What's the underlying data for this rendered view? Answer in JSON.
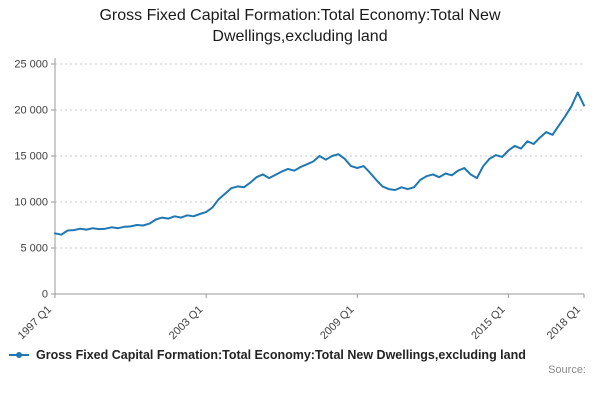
{
  "title": "Gross Fixed Capital Formation:Total Economy:Total New Dwellings,excluding land",
  "legend": {
    "label": "Gross Fixed Capital Formation:Total Economy:Total New Dwellings,excluding land"
  },
  "source_label": "Source:",
  "colors": {
    "line": "#1f77b4",
    "grid": "#c9c9c9",
    "axis": "#9a9a9a",
    "text": "#404040"
  },
  "chart_data": {
    "type": "line",
    "title": "Gross Fixed Capital Formation:Total Economy:Total New Dwellings,excluding land",
    "xlabel": "",
    "ylabel": "",
    "frequency": "quarterly",
    "start": "1997 Q1",
    "end": "2018 Q1",
    "ylim": [
      0,
      25000
    ],
    "y_ticks": [
      0,
      5000,
      10000,
      15000,
      20000,
      25000
    ],
    "y_tick_labels": [
      "0",
      "5 000",
      "10 000",
      "15 000",
      "20 000",
      "25 000"
    ],
    "x_tick_labels": [
      "1997 Q1",
      "2003 Q1",
      "2009 Q1",
      "2015 Q1",
      "2018 Q1"
    ],
    "x_tick_indices": [
      0,
      24,
      48,
      72,
      84
    ],
    "grid": "horizontal-dotted",
    "legend_position": "bottom-left",
    "series": [
      {
        "name": "Gross Fixed Capital Formation:Total Economy:Total New Dwellings,excluding land",
        "values": [
          6600,
          6450,
          6900,
          6950,
          7100,
          7000,
          7150,
          7050,
          7100,
          7250,
          7150,
          7300,
          7350,
          7500,
          7450,
          7650,
          8100,
          8300,
          8200,
          8450,
          8300,
          8550,
          8450,
          8700,
          8900,
          9400,
          10300,
          10900,
          11500,
          11700,
          11600,
          12100,
          12700,
          13000,
          12600,
          12950,
          13300,
          13600,
          13400,
          13800,
          14100,
          14400,
          15000,
          14600,
          15000,
          15200,
          14700,
          13900,
          13700,
          13900,
          13200,
          12400,
          11700,
          11400,
          11300,
          11600,
          11400,
          11600,
          12400,
          12800,
          13000,
          12700,
          13100,
          12900,
          13400,
          13700,
          13000,
          12600,
          13900,
          14700,
          15100,
          14900,
          15600,
          16100,
          15800,
          16600,
          16300,
          17000,
          17600,
          17300,
          18300,
          19300,
          20400,
          21900,
          20500
        ]
      }
    ]
  }
}
